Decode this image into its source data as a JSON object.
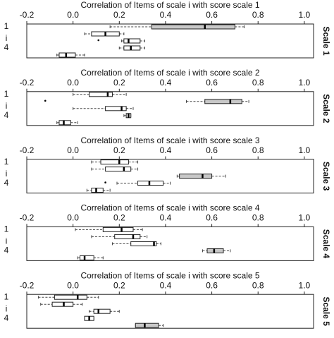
{
  "chart_data": [
    {
      "type": "box",
      "title": "Correlation of Items of scale i with score scale 1",
      "side_label": "Scale 1",
      "ylabel": "i",
      "categories": [
        "1",
        null,
        null,
        "4",
        null
      ],
      "colors": [
        "#c8c8c8",
        "#ffffff",
        "#ffffff",
        "#ffffff",
        "#ffffff"
      ],
      "boxes": [
        {
          "min": 0.16,
          "q1": 0.34,
          "median": 0.57,
          "q3": 0.7,
          "max": 0.74
        },
        {
          "min": 0.05,
          "q1": 0.08,
          "median": 0.14,
          "q3": 0.2,
          "max": 0.22,
          "outliers": [
            0.11
          ]
        },
        {
          "min": 0.21,
          "q1": 0.22,
          "median": 0.24,
          "q3": 0.29,
          "max": 0.31
        },
        {
          "min": 0.2,
          "q1": 0.22,
          "median": 0.25,
          "q3": 0.29,
          "max": 0.31
        },
        {
          "min": -0.07,
          "q1": -0.06,
          "median": -0.03,
          "q3": 0.01,
          "max": 0.05
        }
      ],
      "xlim": [
        -0.2,
        1.04
      ],
      "xticks": [
        {
          "value": -0.2,
          "label": "-0.2"
        },
        {
          "value": 0,
          "label": "0.0"
        },
        0.2,
        0.4,
        0.6,
        0.8,
        {
          "value": 1,
          "label": "1.0"
        }
      ]
    },
    {
      "type": "box",
      "title": "Correlation of Items of scale i with score scale 2",
      "side_label": "Scale 2",
      "ylabel": "i",
      "categories": [
        "1",
        null,
        null,
        "4",
        null
      ],
      "colors": [
        "#ffffff",
        "#c8c8c8",
        "#ffffff",
        "#ffffff",
        "#ffffff"
      ],
      "boxes": [
        {
          "min": 0.0,
          "q1": 0.07,
          "median": 0.15,
          "q3": 0.17,
          "max": 0.23,
          "outliers": [
            -0.12
          ]
        },
        {
          "min": 0.49,
          "q1": 0.57,
          "median": 0.68,
          "q3": 0.73,
          "max": 0.76
        },
        {
          "min": 0.0,
          "q1": 0.14,
          "median": 0.21,
          "q3": 0.23,
          "max": 0.26
        },
        {
          "min": 0.22,
          "q1": 0.23,
          "median": 0.24,
          "q3": 0.25,
          "max": 0.25
        },
        {
          "min": -0.07,
          "q1": -0.06,
          "median": -0.04,
          "q3": -0.01,
          "max": 0.02
        }
      ],
      "xlim": [
        -0.2,
        1.04
      ],
      "xticks": [
        {
          "value": -0.2,
          "label": "-0.2"
        },
        {
          "value": 0,
          "label": "0.0"
        },
        0.2,
        0.4,
        0.6,
        0.8,
        {
          "value": 1,
          "label": "1.0"
        }
      ]
    },
    {
      "type": "box",
      "title": "Correlation of Items of scale i with score scale 3",
      "side_label": "Scale 3",
      "ylabel": "i",
      "categories": [
        "1",
        null,
        null,
        "4",
        null
      ],
      "colors": [
        "#ffffff",
        "#ffffff",
        "#c8c8c8",
        "#ffffff",
        "#ffffff"
      ],
      "boxes": [
        {
          "min": 0.08,
          "q1": 0.12,
          "median": 0.2,
          "q3": 0.24,
          "max": 0.28
        },
        {
          "min": 0.08,
          "q1": 0.14,
          "median": 0.22,
          "q3": 0.25,
          "max": 0.28
        },
        {
          "min": 0.45,
          "q1": 0.46,
          "median": 0.56,
          "q3": 0.6,
          "max": 0.66,
          "outliers": [
            0.14
          ]
        },
        {
          "min": 0.19,
          "q1": 0.28,
          "median": 0.33,
          "q3": 0.39,
          "max": 0.42
        },
        {
          "min": 0.06,
          "q1": 0.08,
          "median": 0.1,
          "q3": 0.13,
          "max": 0.16
        }
      ],
      "xlim": [
        -0.2,
        1.04
      ],
      "xticks": [
        {
          "value": -0.2,
          "label": "-0.2"
        },
        {
          "value": 0,
          "label": "0.0"
        },
        0.2,
        0.4,
        0.6,
        0.8,
        {
          "value": 1,
          "label": "1.0"
        }
      ]
    },
    {
      "type": "box",
      "title": "Correlation of Items of scale i with score scale 4",
      "side_label": "Scale 4",
      "ylabel": "i",
      "categories": [
        "1",
        null,
        null,
        "4",
        null
      ],
      "colors": [
        "#ffffff",
        "#ffffff",
        "#ffffff",
        "#c8c8c8",
        "#ffffff"
      ],
      "boxes": [
        {
          "min": 0.01,
          "q1": 0.13,
          "median": 0.21,
          "q3": 0.26,
          "max": 0.3
        },
        {
          "min": 0.08,
          "q1": 0.18,
          "median": 0.26,
          "q3": 0.29,
          "max": 0.32
        },
        {
          "min": 0.17,
          "q1": 0.25,
          "median": 0.35,
          "q3": 0.36,
          "max": 0.38
        },
        {
          "min": 0.56,
          "q1": 0.58,
          "median": 0.61,
          "q3": 0.65,
          "max": 0.68
        },
        {
          "min": 0.02,
          "q1": 0.03,
          "median": 0.05,
          "q3": 0.09,
          "max": 0.13
        }
      ],
      "xlim": [
        -0.2,
        1.04
      ],
      "xticks": [
        {
          "value": -0.2,
          "label": "-0.2"
        },
        {
          "value": 0,
          "label": "0.0"
        },
        0.2,
        0.4,
        0.6,
        0.8,
        {
          "value": 1,
          "label": "1.0"
        }
      ]
    },
    {
      "type": "box",
      "title": "Correlation of Items of scale i with score scale 5",
      "side_label": "Scale 5",
      "ylabel": "i",
      "categories": [
        "1",
        null,
        null,
        "4",
        null
      ],
      "colors": [
        "#ffffff",
        "#ffffff",
        "#ffffff",
        "#ffffff",
        "#c8c8c8"
      ],
      "boxes": [
        {
          "min": -0.15,
          "q1": -0.08,
          "median": 0.02,
          "q3": 0.06,
          "max": 0.11
        },
        {
          "min": -0.14,
          "q1": -0.09,
          "median": -0.04,
          "q3": 0.0,
          "max": 0.04
        },
        {
          "min": 0.07,
          "q1": 0.09,
          "median": 0.11,
          "q3": 0.16,
          "max": 0.2
        },
        {
          "min": 0.05,
          "q1": 0.05,
          "median": 0.07,
          "q3": 0.09,
          "max": 0.09
        },
        {
          "min": 0.27,
          "q1": 0.27,
          "median": 0.31,
          "q3": 0.37,
          "max": 0.39
        }
      ],
      "xlim": [
        -0.2,
        1.04
      ],
      "xticks": [
        {
          "value": -0.2,
          "label": "-0.2"
        },
        {
          "value": 0,
          "label": "0.0"
        },
        0.2,
        0.4,
        0.6,
        0.8,
        {
          "value": 1,
          "label": "1.0"
        }
      ]
    }
  ]
}
